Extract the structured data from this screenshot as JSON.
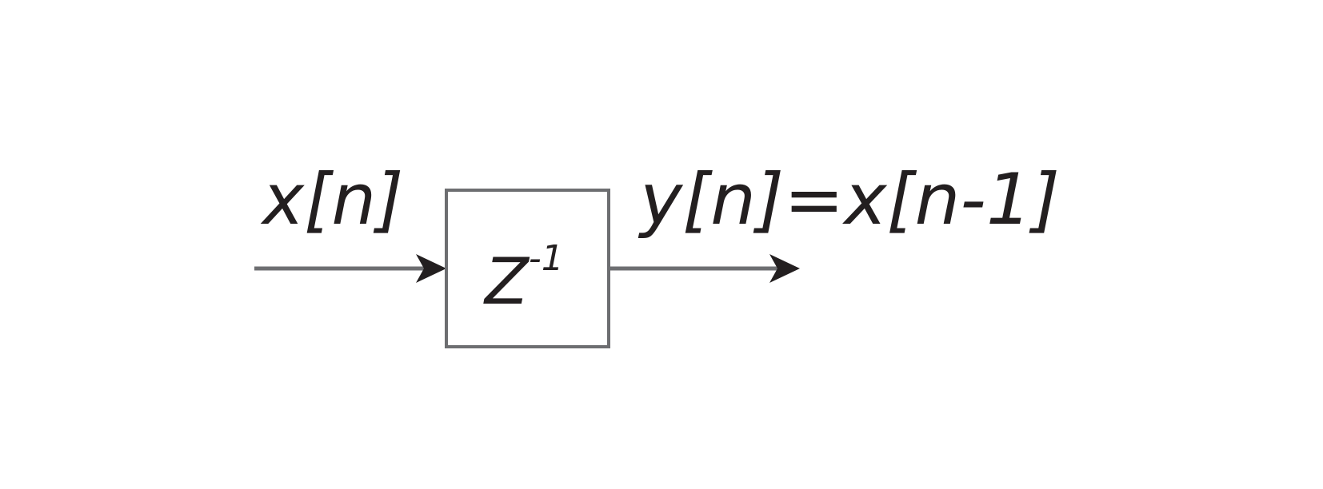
{
  "diagram": {
    "input_label": "x[n]",
    "output_label": "y[n]=x[n-1]",
    "block": {
      "base": "Z",
      "exponent": "-1"
    }
  },
  "colors": {
    "text": "#231f20",
    "line": "#6d6e71",
    "arrowhead": "#231f20",
    "block_border": "#6d6e71",
    "background": "#ffffff"
  }
}
